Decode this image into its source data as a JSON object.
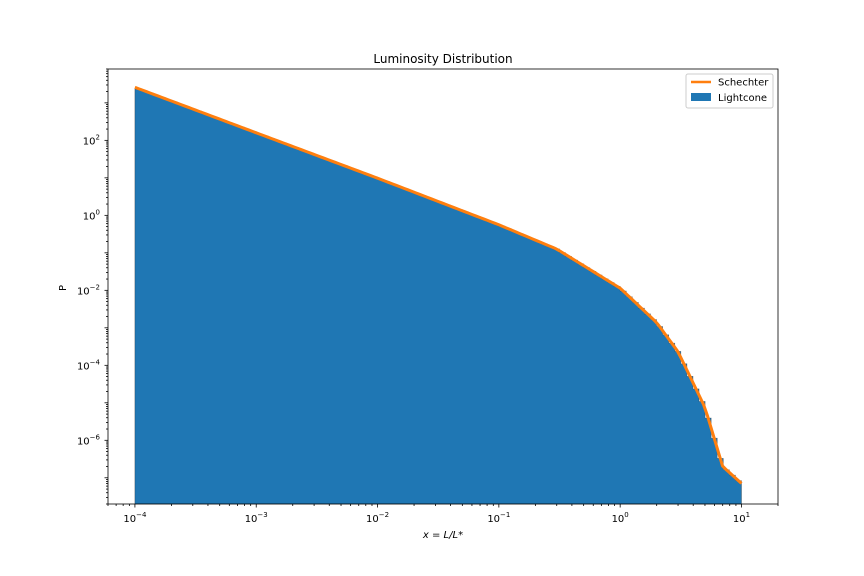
{
  "chart_data": {
    "type": "area",
    "title": "Luminosity Distribution",
    "xlabel": "x = L/L*",
    "ylabel": "P",
    "xscale": "log",
    "yscale": "log",
    "xlim": [
      6e-05,
      20
    ],
    "ylim": [
      2e-08,
      8000
    ],
    "xticks": [
      {
        "value": 0.0001,
        "exp": "−4"
      },
      {
        "value": 0.001,
        "exp": "−3"
      },
      {
        "value": 0.01,
        "exp": "−2"
      },
      {
        "value": 0.1,
        "exp": "−1"
      },
      {
        "value": 1,
        "exp": "0"
      },
      {
        "value": 10,
        "exp": "1"
      }
    ],
    "yticks": [
      {
        "value": 100,
        "exp": "2"
      },
      {
        "value": 1,
        "exp": "0"
      },
      {
        "value": 0.01,
        "exp": "−2"
      },
      {
        "value": 0.0001,
        "exp": "−4"
      },
      {
        "value": 1e-06,
        "exp": "−6"
      }
    ],
    "legend_position": "top-right",
    "series": [
      {
        "name": "Schechter",
        "kind": "line",
        "color": "#ff7f0e",
        "x": [
          0.0001,
          0.001,
          0.01,
          0.1,
          0.3,
          1,
          2,
          3,
          5,
          7,
          10
        ],
        "y": [
          2600,
          159,
          9.8,
          0.56,
          0.126,
          0.0114,
          0.00138,
          0.00023,
          7.5e-06,
          2e-07,
          7.1e-08
        ]
      },
      {
        "name": "Lightcone",
        "kind": "histogram",
        "color": "#1f77b4",
        "x": [
          0.0001,
          0.001,
          0.01,
          0.1,
          0.3,
          1,
          2,
          3,
          5,
          7,
          10
        ],
        "y": [
          2600,
          159,
          9.8,
          0.56,
          0.126,
          0.0114,
          0.00138,
          0.00023,
          7.5e-06,
          2e-07,
          7.1e-08
        ]
      }
    ]
  }
}
